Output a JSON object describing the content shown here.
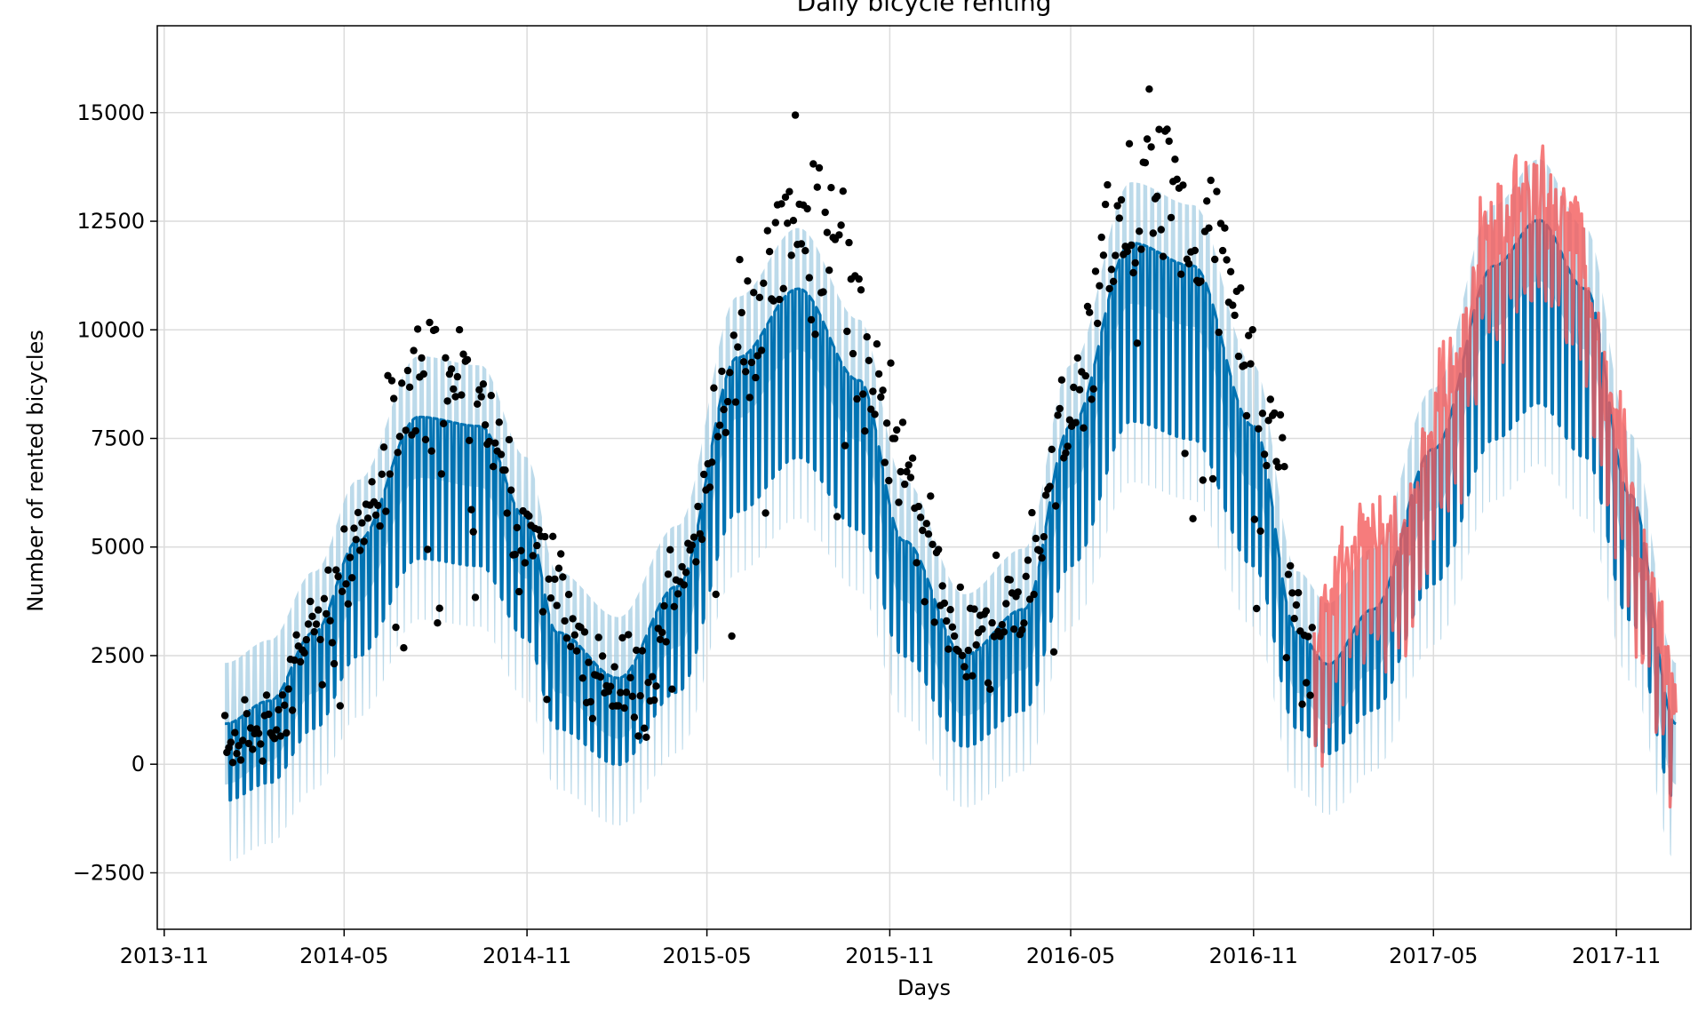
{
  "chart_data": {
    "type": "line",
    "title": "Daily bicycle renting",
    "xlabel": "Days",
    "ylabel": "Number of rented bicycles",
    "x_range": [
      "2013-10-25",
      "2018-01-15"
    ],
    "y_range": [
      -3800,
      17000
    ],
    "grid": true,
    "legend": "none",
    "x_ticks": [
      "2013-11",
      "2014-05",
      "2014-11",
      "2015-05",
      "2015-11",
      "2016-05",
      "2016-11",
      "2017-05",
      "2017-11"
    ],
    "y_ticks": [
      -2500,
      0,
      2500,
      5000,
      7500,
      10000,
      12500,
      15000
    ],
    "history_range": [
      "2014-01-01",
      "2016-12-31"
    ],
    "forecast_range": [
      "2017-01-01",
      "2017-12-31"
    ],
    "series": [
      {
        "role": "observed-points",
        "kind": "scatter",
        "color": "#000000",
        "seasonal_profile": [
          {
            "x": "2014-01-01",
            "y": 500
          },
          {
            "x": "2014-02-15",
            "y": 900
          },
          {
            "x": "2014-04-01",
            "y": 3000
          },
          {
            "x": "2014-05-15",
            "y": 5200
          },
          {
            "x": "2014-07-15",
            "y": 9000
          },
          {
            "x": "2014-09-15",
            "y": 8500
          },
          {
            "x": "2014-10-31",
            "y": 5000
          },
          {
            "x": "2015-01-15",
            "y": 2000
          },
          {
            "x": "2015-03-01",
            "y": 1800
          },
          {
            "x": "2015-04-01",
            "y": 4000
          },
          {
            "x": "2015-05-01",
            "y": 6500
          },
          {
            "x": "2015-06-15",
            "y": 10500
          },
          {
            "x": "2015-08-01",
            "y": 12200
          },
          {
            "x": "2015-09-15",
            "y": 11000
          },
          {
            "x": "2015-10-31",
            "y": 7500
          },
          {
            "x": "2016-01-15",
            "y": 3000
          },
          {
            "x": "2016-03-15",
            "y": 4000
          },
          {
            "x": "2016-05-01",
            "y": 8000
          },
          {
            "x": "2016-06-15",
            "y": 12500
          },
          {
            "x": "2016-08-01",
            "y": 13500
          },
          {
            "x": "2016-09-15",
            "y": 12500
          },
          {
            "x": "2016-11-15",
            "y": 8000
          },
          {
            "x": "2016-12-31",
            "y": 2500
          }
        ]
      },
      {
        "role": "fitted-forecast",
        "kind": "line-with-band",
        "color": "#0072B2",
        "band_color": "#a6cee3",
        "seasonal_profile": [
          {
            "x": "2014-01-01",
            "y": 500
          },
          {
            "x": "2014-02-15",
            "y": 1000
          },
          {
            "x": "2014-04-01",
            "y": 2500
          },
          {
            "x": "2014-05-15",
            "y": 4500
          },
          {
            "x": "2014-07-15",
            "y": 7200
          },
          {
            "x": "2014-09-15",
            "y": 7000
          },
          {
            "x": "2014-10-31",
            "y": 5000
          },
          {
            "x": "2014-12-01",
            "y": 2500
          },
          {
            "x": "2015-02-01",
            "y": 1500
          },
          {
            "x": "2015-04-01",
            "y": 3500
          },
          {
            "x": "2015-06-01",
            "y": 8500
          },
          {
            "x": "2015-08-01",
            "y": 10000
          },
          {
            "x": "2015-10-01",
            "y": 8000
          },
          {
            "x": "2015-11-15",
            "y": 4500
          },
          {
            "x": "2016-01-15",
            "y": 2000
          },
          {
            "x": "2016-03-15",
            "y": 3000
          },
          {
            "x": "2016-05-01",
            "y": 7000
          },
          {
            "x": "2016-07-01",
            "y": 11000
          },
          {
            "x": "2016-09-01",
            "y": 10500
          },
          {
            "x": "2016-11-01",
            "y": 7000
          },
          {
            "x": "2016-12-15",
            "y": 2500
          },
          {
            "x": "2017-01-15",
            "y": 1800
          },
          {
            "x": "2017-03-01",
            "y": 3000
          },
          {
            "x": "2017-05-01",
            "y": 6500
          },
          {
            "x": "2017-07-01",
            "y": 10500
          },
          {
            "x": "2017-08-15",
            "y": 11500
          },
          {
            "x": "2017-10-01",
            "y": 10000
          },
          {
            "x": "2017-11-15",
            "y": 5500
          },
          {
            "x": "2017-12-31",
            "y": 500
          }
        ]
      },
      {
        "role": "actual-forecast-period",
        "kind": "line",
        "color": "#f45b5b",
        "seasonal_profile": [
          {
            "x": "2017-01-01",
            "y": 2500
          },
          {
            "x": "2017-02-15",
            "y": 4500
          },
          {
            "x": "2017-04-01",
            "y": 5000
          },
          {
            "x": "2017-05-15",
            "y": 8000
          },
          {
            "x": "2017-07-01",
            "y": 12000
          },
          {
            "x": "2017-08-01",
            "y": 12800
          },
          {
            "x": "2017-09-15",
            "y": 12000
          },
          {
            "x": "2017-10-31",
            "y": 7500
          },
          {
            "x": "2017-12-01",
            "y": 4000
          },
          {
            "x": "2017-12-31",
            "y": 1000
          }
        ]
      }
    ]
  }
}
